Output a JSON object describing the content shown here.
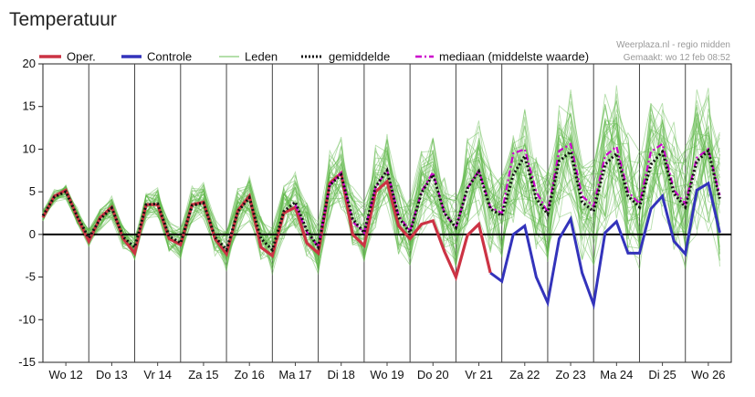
{
  "page": {
    "title": "Temperatuur"
  },
  "credit": {
    "line1": "Weerplaza.nl - regio midden",
    "line2": "Gemaakt: wo 12 feb 08:52"
  },
  "legend": [
    {
      "label": "Oper.",
      "color": "#cc3344",
      "style": "solid"
    },
    {
      "label": "Controle",
      "color": "#3333bb",
      "style": "solid"
    },
    {
      "label": "Leden",
      "color": "#88cc77",
      "style": "thin"
    },
    {
      "label": "gemiddelde",
      "color": "#111111",
      "style": "dotted"
    },
    {
      "label": "mediaan (middelste waarde)",
      "color": "#cc00cc",
      "style": "dashdot"
    }
  ],
  "chart_data": {
    "type": "line",
    "title": "Temperatuur",
    "xlabel": "",
    "ylabel": "",
    "ylim": [
      -15,
      20
    ],
    "yticks": [
      20,
      15,
      10,
      5,
      0,
      -5,
      -10,
      -15
    ],
    "days": [
      "Wo 12",
      "Do 13",
      "Vr 14",
      "Za 15",
      "Zo 16",
      "Ma 17",
      "Di 18",
      "Wo 19",
      "Do 20",
      "Vr 21",
      "Za 22",
      "Zo 23",
      "Ma 24",
      "Di 25",
      "Wo 26"
    ],
    "x_unit": "6-hour steps from Wo 12 00:00",
    "grid": "vertical day separators",
    "legend_position": "top",
    "colors": {
      "oper": "#cc3344",
      "controle": "#3333bb",
      "leden": "#5fb84a",
      "gemiddelde": "#111111",
      "mediaan": "#cc00cc"
    },
    "series": [
      {
        "name": "Oper.",
        "key": "oper",
        "x_start": 0,
        "values": [
          2,
          4.5,
          5.2,
          2,
          -0.8,
          2,
          3.2,
          -0.5,
          -2.2,
          3.5,
          3.5,
          -0.5,
          -1.2,
          3.5,
          3.8,
          -0.5,
          -2.3,
          2.8,
          4.5,
          -1.5,
          -2.5,
          2.5,
          3.2,
          -1,
          -2.2,
          6,
          7.2,
          0,
          -1.3,
          5,
          6.2,
          1,
          -0.5,
          1.2,
          1.6,
          -2,
          -5,
          -0.1,
          1.2,
          -4.5
        ]
      },
      {
        "name": "Controle",
        "key": "controle",
        "x_start": 39,
        "values": [
          -4.5,
          -5.5,
          0,
          1,
          -5,
          -8,
          -0.5,
          1.8,
          -4.5,
          -8.2,
          0.2,
          1.5,
          -2.2,
          -2.2,
          3,
          4.5,
          -0.8,
          -2.3,
          5.2,
          6,
          0.2
        ]
      },
      {
        "name": "gemiddelde",
        "key": "gemiddelde",
        "x_start": 0,
        "values": [
          2.2,
          4.4,
          5,
          2.1,
          -0.4,
          1.8,
          3.1,
          -0.3,
          -1.5,
          3.5,
          3.6,
          -0.2,
          -1,
          3.4,
          3.7,
          -0.3,
          -1.8,
          2.7,
          4.3,
          -0.5,
          -1.8,
          2.7,
          3.8,
          0.5,
          -1.5,
          5.8,
          7,
          1.8,
          0.2,
          5.6,
          7.5,
          2,
          0.2,
          4.9,
          7,
          2.5,
          0.8,
          5.4,
          7.4,
          3,
          2.2,
          7,
          9.2,
          4.2,
          2.4,
          8.6,
          9.7,
          3.8,
          2.7,
          8.2,
          9.5,
          4.5,
          3.2,
          8.2,
          9.7,
          4.8,
          3.2,
          8.6,
          9.8,
          4.2
        ]
      },
      {
        "name": "mediaan (middelste waarde)",
        "key": "mediaan",
        "x_start": 22,
        "values": [
          3.5,
          0.3,
          -1.4,
          5.8,
          7.2,
          1.5,
          0.2,
          5.5,
          7.6,
          2.2,
          0.4,
          5,
          7.3,
          2.5,
          0.8,
          5.4,
          7.5,
          3.2,
          2.5,
          9.5,
          10,
          5,
          2.6,
          9.8,
          10.6,
          4.5,
          3.3,
          9.2,
          10.3,
          5,
          3.6,
          9.7,
          10.6,
          5.2,
          3.6,
          9,
          10,
          4.6
        ]
      }
    ],
    "ensemble_note": "Leden: ~40 thin ensemble member lines spreading around the mean"
  }
}
